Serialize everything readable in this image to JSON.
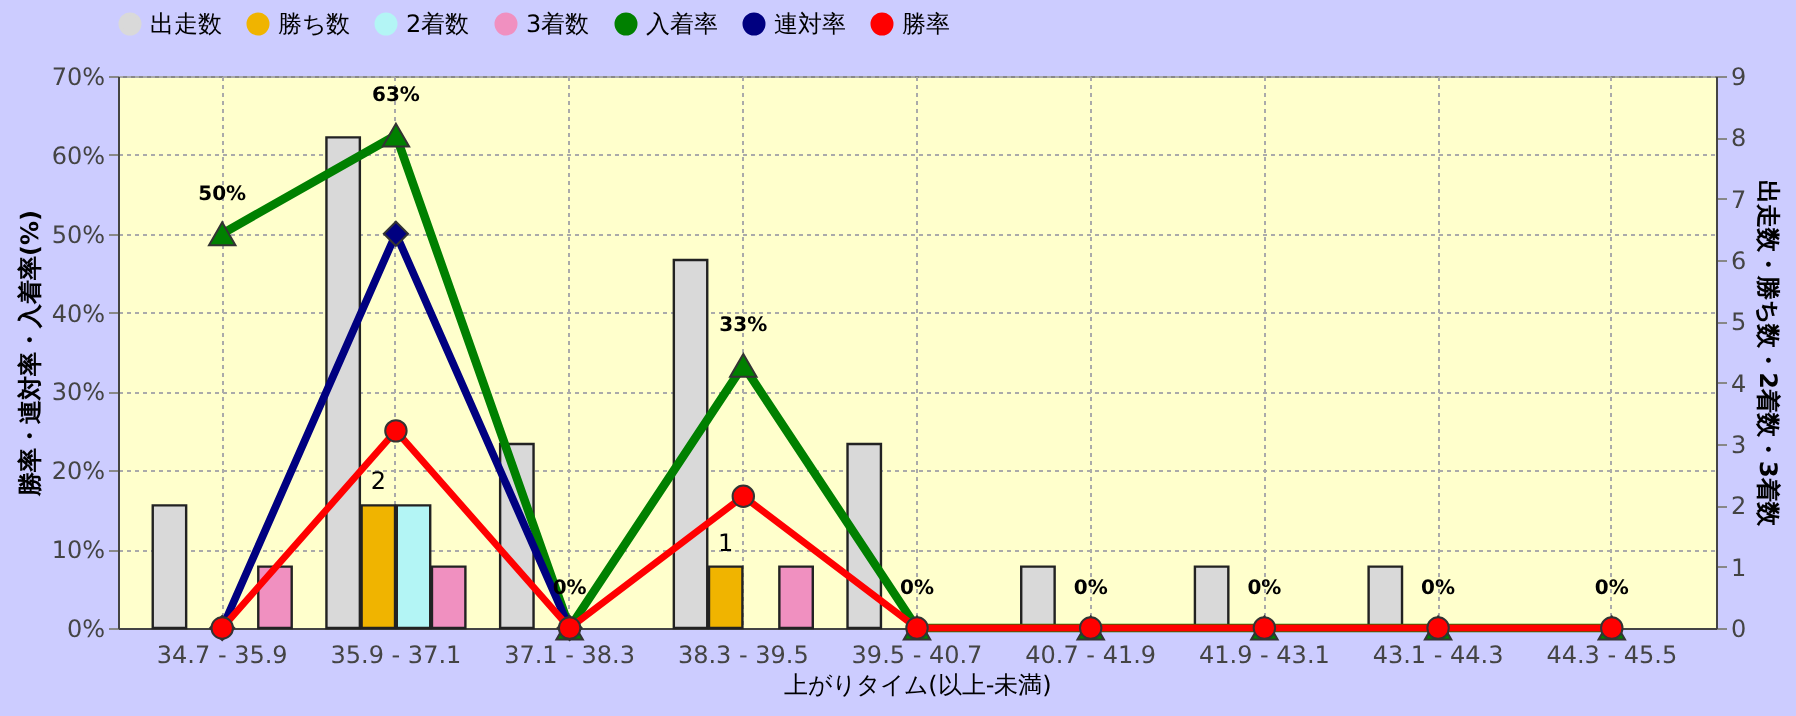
{
  "chart_data": {
    "type": "bar",
    "categories": [
      "34.7 - 35.9",
      "35.9 - 37.1",
      "37.1 - 38.3",
      "38.3 - 39.5",
      "39.5 - 40.7",
      "40.7 - 41.9",
      "41.9 - 43.1",
      "43.1 - 44.3",
      "44.3 - 45.5"
    ],
    "series": [
      {
        "name": "出走数",
        "axis": "y2",
        "color": "#d9d9d9",
        "values": [
          2,
          8,
          3,
          6,
          3,
          1,
          1,
          1,
          0
        ]
      },
      {
        "name": "勝ち数",
        "axis": "y2",
        "color": "#f0b400",
        "values": [
          0,
          2,
          0,
          1,
          0,
          0,
          0,
          0,
          0
        ],
        "value_labels": [
          null,
          "2",
          null,
          "1",
          null,
          null,
          null,
          null,
          null
        ]
      },
      {
        "name": "2着数",
        "axis": "y2",
        "color": "#b3f5f5",
        "values": [
          0,
          2,
          0,
          0,
          0,
          0,
          0,
          0,
          0
        ]
      },
      {
        "name": "3着数",
        "axis": "y2",
        "color": "#f090c0",
        "values": [
          1,
          1,
          0,
          1,
          0,
          0,
          0,
          0,
          0
        ]
      },
      {
        "name": "入着率",
        "type": "line",
        "color": "#008000",
        "marker": "triangle",
        "values": [
          50,
          62.5,
          0,
          33.3,
          0,
          0,
          0,
          0,
          0
        ],
        "value_labels": [
          "50%",
          "63%",
          "0%",
          "33%",
          "0%",
          "0%",
          "0%",
          "0%",
          "0%"
        ]
      },
      {
        "name": "連対率",
        "type": "line",
        "color": "#000080",
        "marker": "diamond",
        "values": [
          0,
          50,
          0,
          null,
          null,
          null,
          null,
          null,
          null
        ]
      },
      {
        "name": "勝率",
        "type": "line",
        "color": "#ff0000",
        "marker": "circle",
        "values": [
          0,
          25,
          0,
          16.7,
          0,
          0,
          0,
          0,
          0
        ]
      }
    ],
    "xlabel": "上がりタイム(以上-未満)",
    "ylabel": "勝率・連対率・入着率(%)",
    "y2label": "出走数・勝ち数・2着数・3着数",
    "ylim": [
      0,
      70
    ],
    "yticks": [
      {
        "value": 0,
        "label": "0%"
      },
      {
        "value": 10,
        "label": "10%"
      },
      {
        "value": 20,
        "label": "20%"
      },
      {
        "value": 30,
        "label": "30%"
      },
      {
        "value": 40,
        "label": "40%"
      },
      {
        "value": 50,
        "label": "50%"
      },
      {
        "value": 60,
        "label": "60%"
      },
      {
        "value": 70,
        "label": "70%"
      }
    ],
    "y2lim": [
      0,
      9
    ],
    "y2ticks": [
      0,
      1,
      2,
      3,
      4,
      5,
      6,
      7,
      8,
      9
    ],
    "grid": true,
    "legend": "top"
  }
}
